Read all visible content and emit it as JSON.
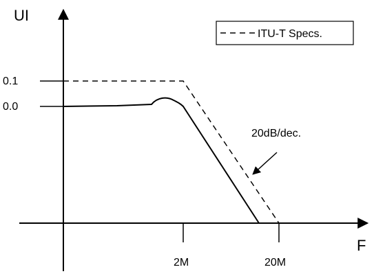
{
  "axes": {
    "y_label": "UI",
    "x_label": "F",
    "y_ticks": [
      "0.1",
      "0.0"
    ],
    "x_ticks": [
      "2M",
      "20M"
    ]
  },
  "legend": {
    "label": "ITU-T Specs."
  },
  "annotation": {
    "slope_label": "20dB/dec."
  }
}
